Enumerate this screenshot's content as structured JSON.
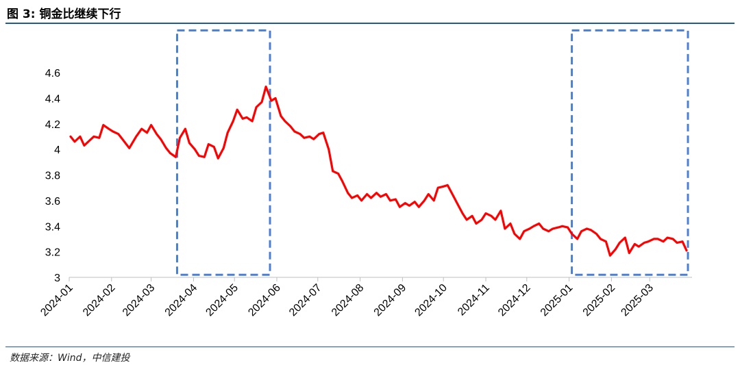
{
  "title": "图 3: 铜金比继续下行",
  "source": "数据来源：Wind，中信建投",
  "colors": {
    "series": "#ff0000",
    "box": "#4a7fd4",
    "rule": "#1f5a96",
    "axis": "#bfbfbf"
  },
  "chart_data": {
    "type": "line",
    "title": "",
    "xlabel": "",
    "ylabel": "",
    "ylim": [
      3.0,
      4.6
    ],
    "yticks": [
      "4.6",
      "4.4",
      "4.2",
      "4",
      "3.8",
      "3.6",
      "3.4",
      "3.2",
      "3"
    ],
    "xticks": [
      "2024-01",
      "2024-02",
      "2024-03",
      "2024-04",
      "2024-05",
      "2024-06",
      "2024-07",
      "2024-08",
      "2024-09",
      "2024-10",
      "2024-11",
      "2024-12",
      "2025-01",
      "2025-02",
      "2025-03"
    ],
    "grid": false,
    "series": [
      {
        "x": [
          "2024-01-02",
          "2024-01-05",
          "2024-01-09",
          "2024-01-12",
          "2024-01-16",
          "2024-01-19",
          "2024-01-23",
          "2024-01-26",
          "2024-01-30",
          "2024-02-02",
          "2024-02-06",
          "2024-02-09",
          "2024-02-14",
          "2024-02-19",
          "2024-02-23",
          "2024-02-27",
          "2024-03-01",
          "2024-03-05",
          "2024-03-08",
          "2024-03-12",
          "2024-03-15",
          "2024-03-19",
          "2024-03-22",
          "2024-03-26",
          "2024-03-29",
          "2024-04-02",
          "2024-04-05",
          "2024-04-09",
          "2024-04-12",
          "2024-04-16",
          "2024-04-19",
          "2024-04-23",
          "2024-04-26",
          "2024-04-30",
          "2024-05-03",
          "2024-05-07",
          "2024-05-10",
          "2024-05-14",
          "2024-05-17",
          "2024-05-21",
          "2024-05-24",
          "2024-05-28",
          "2024-05-31",
          "2024-06-04",
          "2024-06-07",
          "2024-06-11",
          "2024-06-14",
          "2024-06-18",
          "2024-06-21",
          "2024-06-25",
          "2024-06-28",
          "2024-07-02",
          "2024-07-05",
          "2024-07-09",
          "2024-07-12",
          "2024-07-16",
          "2024-07-19",
          "2024-07-23",
          "2024-07-26",
          "2024-07-30",
          "2024-08-02",
          "2024-08-06",
          "2024-08-09",
          "2024-08-13",
          "2024-08-16",
          "2024-08-20",
          "2024-08-23",
          "2024-08-27",
          "2024-08-30",
          "2024-09-03",
          "2024-09-06",
          "2024-09-10",
          "2024-09-13",
          "2024-09-17",
          "2024-09-20",
          "2024-09-24",
          "2024-09-27",
          "2024-10-01",
          "2024-10-04",
          "2024-10-08",
          "2024-10-11",
          "2024-10-15",
          "2024-10-18",
          "2024-10-22",
          "2024-10-25",
          "2024-10-29",
          "2024-11-01",
          "2024-11-05",
          "2024-11-08",
          "2024-11-12",
          "2024-11-15",
          "2024-11-19",
          "2024-11-22",
          "2024-11-26",
          "2024-11-29",
          "2024-12-03",
          "2024-12-06",
          "2024-12-10",
          "2024-12-13",
          "2024-12-17",
          "2024-12-20",
          "2024-12-24",
          "2024-12-27",
          "2024-12-31",
          "2025-01-03",
          "2025-01-07",
          "2025-01-10",
          "2025-01-14",
          "2025-01-17",
          "2025-01-21",
          "2025-01-24",
          "2025-01-28",
          "2025-01-31",
          "2025-02-04",
          "2025-02-07",
          "2025-02-11",
          "2025-02-14",
          "2025-02-18",
          "2025-02-21",
          "2025-02-25",
          "2025-02-28",
          "2025-03-04",
          "2025-03-07",
          "2025-03-11",
          "2025-03-14",
          "2025-03-18",
          "2025-03-21",
          "2025-03-25",
          "2025-03-28"
        ],
        "y": [
          4.1,
          4.06,
          4.1,
          4.03,
          4.07,
          4.1,
          4.09,
          4.19,
          4.16,
          4.14,
          4.12,
          4.08,
          4.01,
          4.1,
          4.16,
          4.13,
          4.19,
          4.12,
          4.08,
          4.01,
          3.97,
          3.94,
          4.09,
          4.16,
          4.05,
          4.0,
          3.95,
          3.94,
          4.04,
          4.02,
          3.93,
          4.01,
          4.13,
          4.22,
          4.31,
          4.24,
          4.25,
          4.22,
          4.33,
          4.37,
          4.49,
          4.38,
          4.4,
          4.26,
          4.22,
          4.18,
          4.14,
          4.12,
          4.09,
          4.1,
          4.08,
          4.12,
          4.13,
          4.0,
          3.83,
          3.81,
          3.75,
          3.66,
          3.62,
          3.64,
          3.6,
          3.65,
          3.62,
          3.66,
          3.63,
          3.65,
          3.6,
          3.61,
          3.55,
          3.58,
          3.56,
          3.59,
          3.55,
          3.6,
          3.65,
          3.6,
          3.7,
          3.71,
          3.72,
          3.64,
          3.58,
          3.5,
          3.45,
          3.48,
          3.42,
          3.45,
          3.5,
          3.48,
          3.45,
          3.52,
          3.38,
          3.42,
          3.34,
          3.3,
          3.36,
          3.38,
          3.4,
          3.42,
          3.38,
          3.36,
          3.38,
          3.39,
          3.4,
          3.39,
          3.34,
          3.3,
          3.36,
          3.38,
          3.37,
          3.34,
          3.3,
          3.28,
          3.17,
          3.22,
          3.27,
          3.31,
          3.19,
          3.26,
          3.24,
          3.27,
          3.28,
          3.3,
          3.3,
          3.28,
          3.31,
          3.3,
          3.27,
          3.28,
          3.21
        ]
      }
    ],
    "highlight_boxes": [
      {
        "x_start": "2024-03-20",
        "x_end": "2024-05-27",
        "y_low": 3.02,
        "y_high": 4.93
      },
      {
        "x_start": "2025-01-03",
        "x_end": "2025-03-29",
        "y_low": 3.02,
        "y_high": 4.93
      }
    ]
  }
}
